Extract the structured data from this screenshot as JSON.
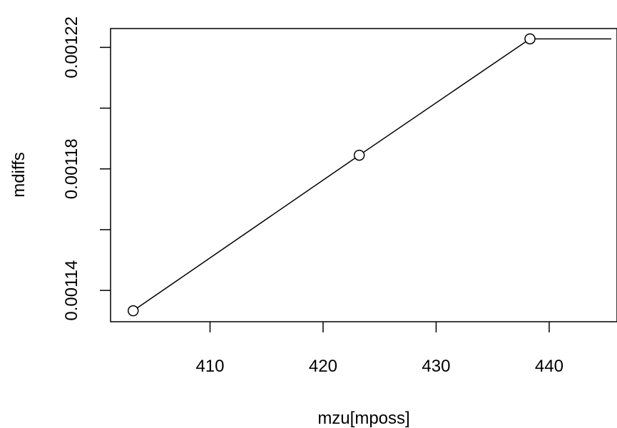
{
  "chart_data": {
    "type": "line",
    "title": "",
    "xlabel": "mzu[mposs]",
    "ylabel": "mdiffs",
    "xlim": [
      401.2,
      446.0
    ],
    "ylim": [
      0.0011297,
      0.0012262
    ],
    "x_ticks": [
      {
        "value": 410,
        "label": "410"
      },
      {
        "value": 420,
        "label": "420"
      },
      {
        "value": 430,
        "label": "430"
      },
      {
        "value": 440,
        "label": "440"
      }
    ],
    "y_ticks": [
      {
        "value": 0.00114,
        "label": "0.00114"
      },
      {
        "value": 0.00116,
        "label": ""
      },
      {
        "value": 0.00118,
        "label": "0.00118"
      },
      {
        "value": 0.0012,
        "label": ""
      },
      {
        "value": 0.00122,
        "label": "0.00122"
      }
    ],
    "series": [
      {
        "points": [
          {
            "x": 403.2,
            "y": 0.0011333
          },
          {
            "x": 423.2,
            "y": 0.0011845
          },
          {
            "x": 438.3,
            "y": 0.0012228
          },
          {
            "x": 445.5,
            "y": 0.0012228
          }
        ],
        "marker_indices": [
          0,
          1,
          2
        ]
      }
    ],
    "grid": false,
    "legend": "none"
  }
}
